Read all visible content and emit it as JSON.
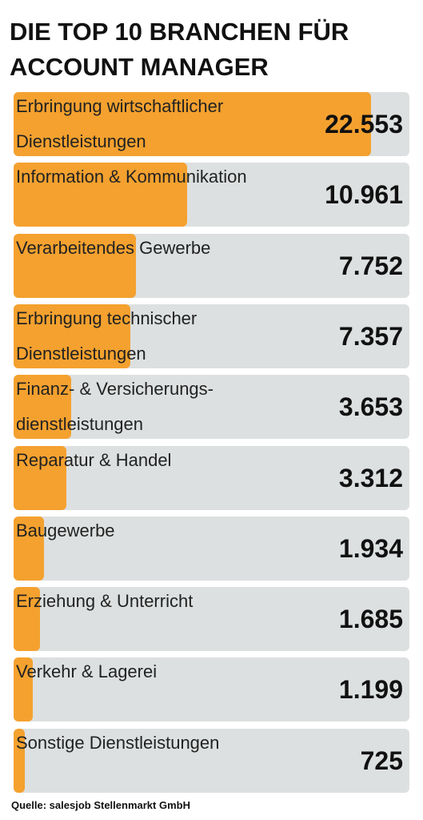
{
  "chart_data": {
    "type": "bar",
    "orientation": "horizontal",
    "title": "DIE TOP 10 BRANCHEN FÜR ACCOUNT MANAGER",
    "categories": [
      "Erbringung wirtschaftlicher Dienstleistungen",
      "Information & Kommunikation",
      "Verarbeitendes Gewerbe",
      "Erbringung technischer Dienstleistungen",
      "Finanz- & Versicherungs-dienstleistungen",
      "Reparatur & Handel",
      "Baugewerbe",
      "Erziehung & Unterricht",
      "Verkehr & Lagerei",
      "Sonstige Dienstleistungen"
    ],
    "values": [
      22553,
      10961,
      7752,
      7357,
      3653,
      3312,
      1934,
      1685,
      1199,
      725
    ],
    "value_labels": [
      "22.553",
      "10.961",
      "7.752",
      "7.357",
      "3.653",
      "3.312",
      "1.934",
      "1.685",
      "1.199",
      "725"
    ],
    "color": "#f4a12f",
    "track_color": "#dde0e0",
    "xlim": [
      0,
      25000
    ],
    "source": "Quelle: salesjob Stellenmarkt GmbH"
  }
}
